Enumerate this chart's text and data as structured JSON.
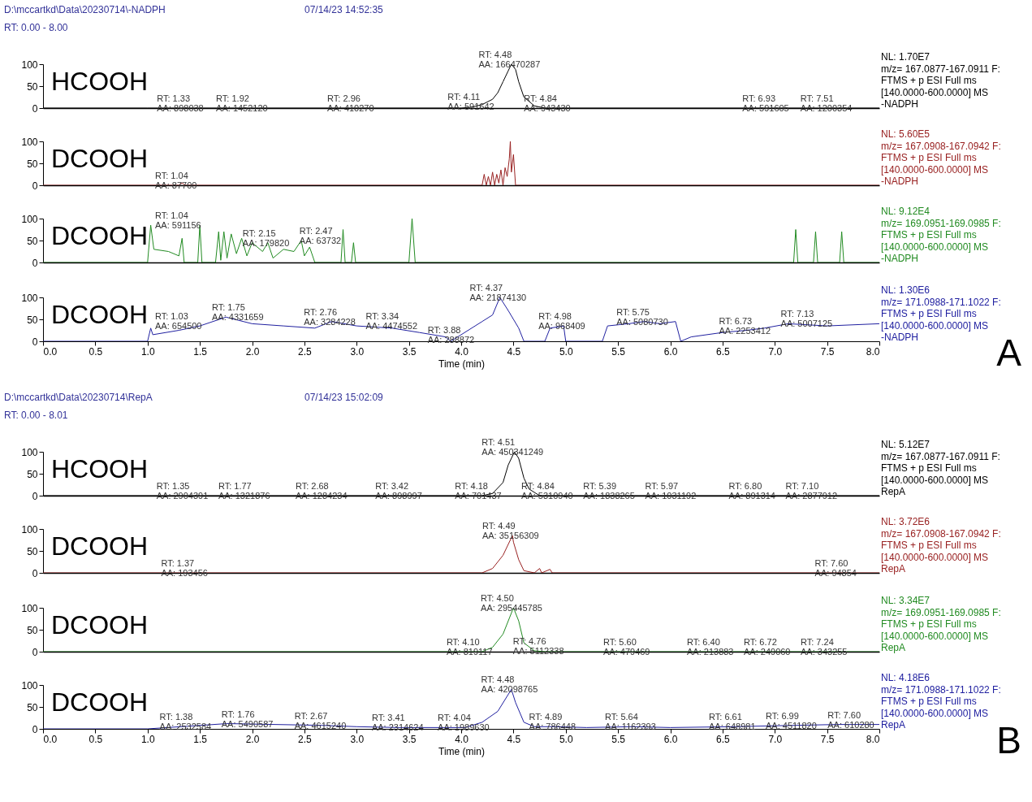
{
  "chart_data": [
    {
      "type": "other",
      "annotations": [
        "D:\\mccartkd\\Data\\20230714\\-NADPH",
        "07/14/23 14:52:35",
        "RT: 0.00 - 8.00"
      ]
    },
    {
      "type": "line",
      "title": "HCOOH",
      "xlim": [
        0,
        8
      ],
      "ylim": [
        0,
        100
      ],
      "yticks": [
        0,
        50,
        100
      ],
      "tick_labels": "y",
      "grid": false,
      "series": [
        {
          "color": "#000000",
          "x": [
            0,
            1.0,
            4.0,
            4.1,
            4.2,
            4.3,
            4.35,
            4.4,
            4.45,
            4.48,
            4.52,
            4.55,
            4.6,
            4.7,
            4.8,
            8.0
          ],
          "values": [
            0,
            0,
            0,
            2,
            8,
            20,
            35,
            60,
            85,
            100,
            88,
            60,
            25,
            5,
            0,
            0
          ]
        }
      ],
      "annotations": [
        {
          "text": "RT: 4.48\nAA: 166470287",
          "x": 4.48,
          "y": 100
        },
        {
          "text": "RT: 1.33\nAA: 898038",
          "x": 1.33,
          "y": 0
        },
        {
          "text": "RT: 1.92\nAA: 1452120",
          "x": 1.92,
          "y": 0
        },
        {
          "text": "RT: 2.96\nAA: 410270",
          "x": 2.96,
          "y": 0
        },
        {
          "text": "RT: 4.11\nAA: 591642",
          "x": 4.11,
          "y": 3
        },
        {
          "text": "RT: 4.84\nAA: 943430",
          "x": 4.84,
          "y": 0
        },
        {
          "text": "RT: 6.93\nAA: 591605",
          "x": 6.93,
          "y": 0
        },
        {
          "text": "RT: 7.51\nAA: 1200354",
          "x": 7.51,
          "y": 0
        },
        "NL: 1.70E7",
        "m/z= 167.0877-167.0911 F:",
        "FTMS + p ESI Full ms",
        "[140.0000-600.0000]  MS",
        "-NADPH"
      ]
    },
    {
      "type": "line",
      "title": "DCOOH",
      "xlim": [
        0,
        8
      ],
      "ylim": [
        0,
        100
      ],
      "yticks": [
        0,
        50,
        100
      ],
      "tick_labels": "y",
      "grid": false,
      "series": [
        {
          "color": "#992222",
          "x": [
            0,
            1.3,
            1.33,
            1.36,
            4.2,
            4.22,
            4.24,
            4.26,
            4.28,
            4.3,
            4.32,
            4.34,
            4.36,
            4.38,
            4.4,
            4.42,
            4.44,
            4.46,
            4.47,
            4.48,
            4.5,
            4.52,
            8
          ],
          "values": [
            0,
            0,
            5,
            0,
            0,
            25,
            0,
            20,
            0,
            30,
            0,
            25,
            5,
            35,
            0,
            40,
            20,
            60,
            100,
            30,
            70,
            0,
            0
          ]
        }
      ],
      "annotations": [
        {
          "text": "RT: 1.04\nAA: 87700",
          "x": 1.04,
          "y": 0
        },
        "NL: 5.60E5",
        "m/z= 167.0908-167.0942 F:",
        "FTMS + p ESI Full ms",
        "[140.0000-600.0000]  MS",
        "-NADPH"
      ]
    },
    {
      "type": "line",
      "title": "DCOOH",
      "xlim": [
        0,
        8
      ],
      "ylim": [
        0,
        100
      ],
      "yticks": [
        0,
        50,
        100
      ],
      "tick_labels": "y",
      "grid": false,
      "series": [
        {
          "color": "#228b22",
          "x": [
            0,
            1.0,
            1.03,
            1.06,
            1.2,
            1.3,
            1.33,
            1.35,
            1.48,
            1.5,
            1.52,
            1.65,
            1.68,
            1.7,
            1.73,
            1.76,
            1.8,
            1.85,
            1.9,
            1.95,
            2.0,
            2.1,
            2.15,
            2.2,
            2.3,
            2.4,
            2.47,
            2.5,
            2.55,
            2.6,
            2.85,
            2.87,
            2.89,
            2.95,
            2.97,
            2.99,
            3.5,
            3.53,
            3.56,
            7.18,
            7.2,
            7.22,
            7.37,
            7.39,
            7.41,
            7.62,
            7.64,
            7.66,
            8
          ],
          "values": [
            0,
            0,
            85,
            30,
            25,
            15,
            55,
            0,
            0,
            85,
            0,
            0,
            70,
            5,
            70,
            10,
            65,
            20,
            55,
            15,
            45,
            25,
            45,
            10,
            30,
            25,
            50,
            15,
            35,
            0,
            0,
            75,
            0,
            0,
            45,
            0,
            0,
            100,
            0,
            0,
            75,
            0,
            0,
            70,
            0,
            0,
            70,
            0,
            0
          ]
        }
      ],
      "annotations": [
        {
          "text": "RT: 1.04\nAA: 591156",
          "x": 1.03,
          "y": 85
        },
        {
          "text": "RT: 2.15\nAA: 179820",
          "x": 2.15,
          "y": 45
        },
        {
          "text": "RT: 2.47\nAA: 63732",
          "x": 2.47,
          "y": 50
        },
        "NL: 9.12E4",
        "m/z= 169.0951-169.0985 F:",
        "FTMS + p ESI Full ms",
        "[140.0000-600.0000]  MS",
        "-NADPH"
      ]
    },
    {
      "type": "line",
      "title": "DCOOH",
      "xlabel": "Time (min)",
      "xlim": [
        0,
        8
      ],
      "xticks": [
        {
          "value": 0,
          "label": "0.0"
        },
        0.5,
        {
          "value": 1,
          "label": "1.0"
        },
        1.5,
        {
          "value": 2,
          "label": "2.0"
        },
        2.5,
        {
          "value": 3,
          "label": "3.0"
        },
        3.5,
        {
          "value": 4,
          "label": "4.0"
        },
        4.5,
        {
          "value": 5,
          "label": "5.0"
        },
        5.5,
        {
          "value": 6,
          "label": "6.0"
        },
        6.5,
        {
          "value": 7,
          "label": "7.0"
        },
        7.5,
        {
          "value": 8,
          "label": "8.0"
        }
      ],
      "ylim": [
        0,
        100
      ],
      "yticks": [
        0,
        50,
        100
      ],
      "grid": false,
      "series": [
        {
          "color": "#2020a0",
          "x": [
            0,
            1.0,
            1.03,
            1.05,
            1.3,
            1.5,
            1.75,
            2.0,
            2.3,
            2.6,
            2.76,
            3.0,
            3.34,
            3.6,
            3.85,
            3.9,
            4.0,
            4.2,
            4.3,
            4.37,
            4.45,
            4.55,
            4.6,
            4.8,
            4.85,
            4.98,
            5.0,
            5.35,
            5.4,
            5.6,
            5.75,
            5.9,
            6.05,
            6.1,
            6.2,
            6.5,
            6.73,
            6.9,
            7.13,
            7.5,
            8.0
          ],
          "values": [
            0,
            0,
            30,
            15,
            25,
            35,
            55,
            40,
            35,
            30,
            45,
            35,
            30,
            20,
            10,
            0,
            15,
            45,
            60,
            100,
            70,
            30,
            0,
            0,
            30,
            35,
            0,
            0,
            35,
            40,
            45,
            40,
            45,
            0,
            10,
            20,
            25,
            30,
            40,
            35,
            40
          ]
        }
      ],
      "annotations": [
        {
          "text": "RT: 1.03\nAA: 654500",
          "x": 1.03,
          "y": 35
        },
        {
          "text": "RT: 1.75\nAA: 4331659",
          "x": 1.75,
          "y": 55
        },
        {
          "text": "RT: 2.76\nAA: 3284228",
          "x": 2.76,
          "y": 45
        },
        {
          "text": "RT: 3.34\nAA: 4474552",
          "x": 3.34,
          "y": 35
        },
        {
          "text": "RT: 3.88\nAA: 288872",
          "x": 3.88,
          "y": 4
        },
        {
          "text": "RT: 4.37\nAA: 21874130",
          "x": 4.37,
          "y": 100
        },
        {
          "text": "RT: 4.98\nAA: 968409",
          "x": 4.98,
          "y": 35
        },
        {
          "text": "RT: 5.75\nAA: 5080730",
          "x": 5.75,
          "y": 45
        },
        {
          "text": "RT: 6.73\nAA: 2253412",
          "x": 6.73,
          "y": 25
        },
        {
          "text": "RT: 7.13\nAA: 5007125",
          "x": 7.13,
          "y": 40
        },
        "NL: 1.30E6",
        "m/z= 171.0988-171.1022 F:",
        "FTMS + p ESI Full ms",
        "[140.0000-600.0000]  MS",
        "-NADPH"
      ]
    },
    {
      "type": "other",
      "annotations": [
        "A"
      ]
    },
    {
      "type": "other",
      "annotations": [
        "D:\\mccartkd\\Data\\20230714\\RepA",
        "07/14/23 15:02:09",
        "RT: 0.00 - 8.01"
      ]
    },
    {
      "type": "line",
      "title": "HCOOH",
      "xlim": [
        0,
        8
      ],
      "ylim": [
        0,
        100
      ],
      "yticks": [
        0,
        50,
        100
      ],
      "tick_labels": "y",
      "grid": false,
      "series": [
        {
          "color": "#000000",
          "x": [
            0,
            4.2,
            4.3,
            4.4,
            4.45,
            4.51,
            4.55,
            4.6,
            4.65,
            4.75,
            8
          ],
          "values": [
            0,
            0,
            5,
            30,
            70,
            100,
            85,
            40,
            15,
            0,
            0
          ]
        }
      ],
      "annotations": [
        {
          "text": "RT: 4.51\nAA: 450341249",
          "x": 4.51,
          "y": 100
        },
        {
          "text": "RT: 1.35\nAA: 2904391",
          "x": 1.35,
          "y": 0
        },
        {
          "text": "RT: 1.77\nAA: 1321876",
          "x": 1.77,
          "y": 0
        },
        {
          "text": "RT: 2.68\nAA: 1284234",
          "x": 2.68,
          "y": 0
        },
        {
          "text": "RT: 3.42\nAA: 898997",
          "x": 3.42,
          "y": 0
        },
        {
          "text": "RT: 4.18\nAA: 701437",
          "x": 4.18,
          "y": 0
        },
        {
          "text": "RT: 4.84\nAA: 5310940",
          "x": 4.84,
          "y": 0
        },
        {
          "text": "RT: 5.39\nAA: 1838265",
          "x": 5.39,
          "y": 0
        },
        {
          "text": "RT: 5.97\nAA: 1031192",
          "x": 5.97,
          "y": 0
        },
        {
          "text": "RT: 6.80\nAA: 891314",
          "x": 6.8,
          "y": 0
        },
        {
          "text": "RT: 7.10\nAA: 2877912",
          "x": 7.1,
          "y": 0
        },
        "NL: 5.12E7",
        "m/z= 167.0877-167.0911 F:",
        "FTMS + p ESI Full ms",
        "[140.0000-600.0000]  MS",
        "RepA"
      ]
    },
    {
      "type": "line",
      "title": "DCOOH",
      "xlim": [
        0,
        8
      ],
      "ylim": [
        0,
        100
      ],
      "yticks": [
        0,
        50,
        100
      ],
      "tick_labels": "y",
      "grid": false,
      "series": [
        {
          "color": "#992222",
          "x": [
            0,
            4.2,
            4.3,
            4.4,
            4.49,
            4.5,
            4.55,
            4.6,
            4.7,
            4.75,
            4.77,
            4.85,
            4.87,
            8
          ],
          "values": [
            0,
            0,
            10,
            40,
            85,
            70,
            30,
            5,
            0,
            10,
            0,
            8,
            0,
            0
          ]
        }
      ],
      "annotations": [
        {
          "text": "RT: 4.49\nAA: 35156309",
          "x": 4.49,
          "y": 85
        },
        {
          "text": "RT: 1.37\nAA: 193456",
          "x": 1.37,
          "y": 0
        },
        {
          "text": "RT: 7.60\nAA: 94854",
          "x": 7.6,
          "y": 0
        },
        "NL: 3.72E6",
        "m/z= 167.0908-167.0942 F:",
        "FTMS + p ESI Full ms",
        "[140.0000-600.0000]  MS",
        "RepA"
      ]
    },
    {
      "type": "line",
      "title": "DCOOH",
      "xlim": [
        0,
        8
      ],
      "ylim": [
        0,
        100
      ],
      "yticks": [
        0,
        50,
        100
      ],
      "tick_labels": "y",
      "grid": false,
      "series": [
        {
          "color": "#228b22",
          "x": [
            0,
            4.2,
            4.3,
            4.4,
            4.5,
            4.55,
            4.6,
            4.7,
            4.8,
            8
          ],
          "values": [
            0,
            0,
            10,
            40,
            100,
            70,
            20,
            2,
            0,
            0
          ]
        }
      ],
      "annotations": [
        {
          "text": "RT: 4.50\nAA: 295445785",
          "x": 4.5,
          "y": 100
        },
        {
          "text": "RT: 4.10\nAA: 819117",
          "x": 4.1,
          "y": 0
        },
        {
          "text": "RT: 4.76\nAA: 5112338",
          "x": 4.76,
          "y": 1
        },
        {
          "text": "RT: 5.60\nAA: 479469",
          "x": 5.6,
          "y": 0
        },
        {
          "text": "RT: 6.40\nAA: 213883",
          "x": 6.4,
          "y": 0
        },
        {
          "text": "RT: 6.72\nAA: 249060",
          "x": 6.72,
          "y": 0
        },
        {
          "text": "RT: 7.24\nAA: 343255",
          "x": 7.24,
          "y": 0
        },
        "NL: 3.34E7",
        "m/z= 169.0951-169.0985 F:",
        "FTMS + p ESI Full ms",
        "[140.0000-600.0000]  MS",
        "RepA"
      ]
    },
    {
      "type": "line",
      "title": "DCOOH",
      "xlabel": "Time (min)",
      "xlim": [
        0,
        8
      ],
      "xticks": [
        {
          "value": 0,
          "label": "0.0"
        },
        0.5,
        {
          "value": 1,
          "label": "1.0"
        },
        1.5,
        {
          "value": 2,
          "label": "2.0"
        },
        2.5,
        {
          "value": 3,
          "label": "3.0"
        },
        3.5,
        {
          "value": 4,
          "label": "4.0"
        },
        4.5,
        {
          "value": 5,
          "label": "5.0"
        },
        5.5,
        {
          "value": 6,
          "label": "6.0"
        },
        6.5,
        {
          "value": 7,
          "label": "7.0"
        },
        7.5,
        {
          "value": 8,
          "label": "8.0"
        }
      ],
      "ylim": [
        0,
        100
      ],
      "yticks": [
        0,
        50,
        100
      ],
      "grid": false,
      "series": [
        {
          "color": "#2020a0",
          "x": [
            0,
            1.0,
            1.38,
            1.76,
            2.67,
            3.0,
            3.41,
            4.04,
            4.2,
            4.35,
            4.48,
            4.52,
            4.6,
            4.7,
            4.89,
            5.2,
            5.64,
            6.0,
            6.61,
            6.99,
            7.6,
            8
          ],
          "values": [
            0,
            0,
            6,
            12,
            8,
            5,
            3,
            3,
            15,
            40,
            90,
            60,
            15,
            5,
            5,
            3,
            5,
            3,
            5,
            7,
            10,
            10
          ]
        }
      ],
      "annotations": [
        {
          "text": "RT: 4.48\nAA: 42098765",
          "x": 4.48,
          "y": 90
        },
        {
          "text": "RT: 1.38\nAA: 2532584",
          "x": 1.38,
          "y": 6
        },
        {
          "text": "RT: 1.76\nAA: 5490587",
          "x": 1.76,
          "y": 12
        },
        {
          "text": "RT: 2.67\nAA: 4615240",
          "x": 2.67,
          "y": 8
        },
        {
          "text": "RT: 3.41\nAA: 2314624",
          "x": 3.41,
          "y": 3
        },
        {
          "text": "RT: 4.04\nAA: 1989630",
          "x": 4.04,
          "y": 3
        },
        {
          "text": "RT: 4.89\nAA: 786448",
          "x": 4.89,
          "y": 5
        },
        {
          "text": "RT: 5.64\nAA: 1162393",
          "x": 5.64,
          "y": 5
        },
        {
          "text": "RT: 6.61\nAA: 648981",
          "x": 6.61,
          "y": 5
        },
        {
          "text": "RT: 6.99\nAA: 4511820",
          "x": 6.99,
          "y": 7
        },
        {
          "text": "RT: 7.60\nAA: 610280",
          "x": 7.6,
          "y": 10
        },
        "NL: 4.18E6",
        "m/z= 171.0988-171.1022 F:",
        "FTMS + p ESI Full ms",
        "[140.0000-600.0000]  MS",
        "RepA"
      ]
    },
    {
      "type": "other",
      "annotations": [
        "B"
      ]
    }
  ]
}
